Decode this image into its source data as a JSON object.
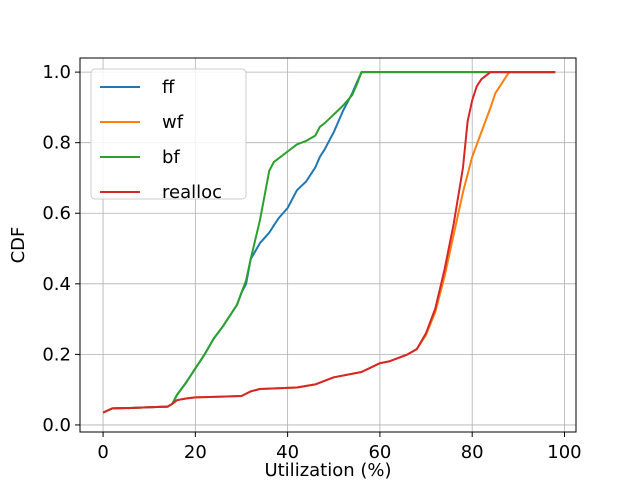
{
  "chart_data": {
    "type": "line",
    "xlabel": "Utilization (%)",
    "ylabel": "CDF",
    "xlim": [
      -5,
      102.5
    ],
    "ylim": [
      -0.02,
      1.04
    ],
    "xticks": [
      0,
      20,
      40,
      60,
      80,
      100
    ],
    "yticks": [
      0.0,
      0.2,
      0.4,
      0.6,
      0.8,
      1.0
    ],
    "xtick_labels": [
      "0",
      "20",
      "40",
      "60",
      "80",
      "100"
    ],
    "ytick_labels": [
      "0.0",
      "0.2",
      "0.4",
      "0.6",
      "0.8",
      "1.0"
    ],
    "grid": true,
    "legend_position": "top-left",
    "series": [
      {
        "name": "ff",
        "color": "#1f77b4",
        "x": [
          0,
          2,
          6,
          10,
          14,
          15,
          16,
          18,
          20,
          22,
          24,
          26,
          28,
          29,
          30,
          31,
          32,
          34,
          36,
          38,
          40,
          42,
          44,
          46,
          47,
          48,
          50,
          52,
          54,
          55,
          56,
          60,
          70,
          80,
          90,
          98
        ],
        "y": [
          0.035,
          0.047,
          0.048,
          0.05,
          0.052,
          0.06,
          0.085,
          0.12,
          0.16,
          0.2,
          0.245,
          0.28,
          0.32,
          0.34,
          0.375,
          0.4,
          0.47,
          0.515,
          0.545,
          0.585,
          0.615,
          0.665,
          0.69,
          0.73,
          0.76,
          0.78,
          0.83,
          0.89,
          0.94,
          0.97,
          1.0,
          1.0,
          1.0,
          1.0,
          1.0,
          1.0
        ]
      },
      {
        "name": "wf",
        "color": "#ff7f0e",
        "x": [
          0,
          2,
          6,
          10,
          14,
          15,
          16,
          18,
          20,
          25,
          30,
          32,
          34,
          38,
          42,
          46,
          50,
          56,
          60,
          62,
          66,
          68,
          70,
          72,
          74,
          76,
          78,
          80,
          82,
          84,
          85,
          87,
          88,
          90,
          98
        ],
        "y": [
          0.035,
          0.047,
          0.048,
          0.05,
          0.052,
          0.06,
          0.07,
          0.075,
          0.078,
          0.08,
          0.082,
          0.095,
          0.102,
          0.104,
          0.106,
          0.115,
          0.135,
          0.15,
          0.175,
          0.18,
          0.2,
          0.215,
          0.255,
          0.32,
          0.42,
          0.54,
          0.66,
          0.76,
          0.83,
          0.9,
          0.94,
          0.98,
          1.0,
          1.0,
          1.0
        ]
      },
      {
        "name": "bf",
        "color": "#2ca02c",
        "x": [
          0,
          2,
          6,
          10,
          14,
          15,
          16,
          18,
          20,
          22,
          24,
          26,
          28,
          29,
          30,
          31,
          32,
          34,
          35,
          36,
          37,
          38,
          40,
          42,
          44,
          46,
          47,
          48,
          50,
          52,
          54,
          55,
          56,
          60,
          70,
          80,
          90,
          98
        ],
        "y": [
          0.035,
          0.047,
          0.048,
          0.05,
          0.052,
          0.06,
          0.085,
          0.12,
          0.16,
          0.2,
          0.245,
          0.28,
          0.32,
          0.34,
          0.375,
          0.41,
          0.47,
          0.58,
          0.65,
          0.72,
          0.745,
          0.755,
          0.775,
          0.795,
          0.805,
          0.82,
          0.845,
          0.855,
          0.88,
          0.905,
          0.935,
          0.965,
          1.0,
          1.0,
          1.0,
          1.0,
          1.0,
          1.0
        ]
      },
      {
        "name": "realloc",
        "color": "#d62728",
        "x": [
          0,
          2,
          6,
          10,
          14,
          15,
          16,
          18,
          20,
          25,
          30,
          32,
          34,
          38,
          42,
          46,
          50,
          56,
          60,
          62,
          66,
          68,
          70,
          72,
          74,
          76,
          78,
          79,
          80,
          81,
          82,
          84,
          88,
          90,
          98
        ],
        "y": [
          0.035,
          0.047,
          0.048,
          0.05,
          0.052,
          0.06,
          0.07,
          0.075,
          0.078,
          0.08,
          0.082,
          0.095,
          0.102,
          0.104,
          0.106,
          0.115,
          0.135,
          0.15,
          0.175,
          0.18,
          0.2,
          0.215,
          0.26,
          0.33,
          0.44,
          0.57,
          0.73,
          0.86,
          0.92,
          0.96,
          0.98,
          1.0,
          1.0,
          1.0,
          1.0
        ]
      }
    ]
  }
}
